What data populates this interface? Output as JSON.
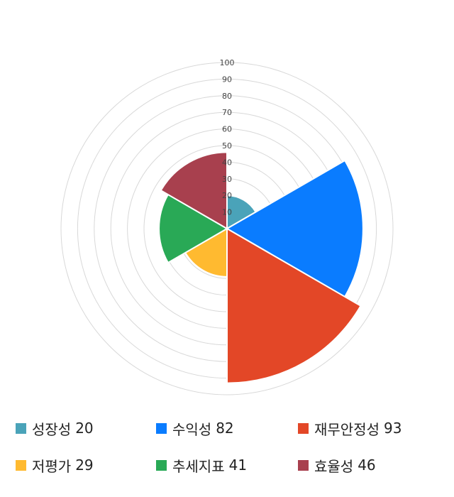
{
  "chart_data": {
    "type": "polar-area",
    "title": "",
    "rlim": [
      0,
      100
    ],
    "r_ticks": [
      "10",
      "20",
      "30",
      "40",
      "50",
      "60",
      "70",
      "80",
      "90",
      "100"
    ],
    "grid": true,
    "legend_position": "bottom",
    "categories": [
      "성장성",
      "수익성",
      "재무안정성",
      "저평가",
      "추세지표",
      "효율성"
    ],
    "values": [
      20,
      82,
      93,
      29,
      41,
      46
    ],
    "colors": [
      "#4aa3b9",
      "#0a7cff",
      "#e34727",
      "#ffba30",
      "#29a956",
      "#a8404e"
    ]
  },
  "legend": [
    {
      "label": "성장성",
      "value": "20",
      "color": "#4aa3b9"
    },
    {
      "label": "수익성",
      "value": "82",
      "color": "#0a7cff"
    },
    {
      "label": "재무안정성",
      "value": "93",
      "color": "#e34727"
    },
    {
      "label": "저평가",
      "value": "29",
      "color": "#ffba30"
    },
    {
      "label": "추세지표",
      "value": "41",
      "color": "#29a956"
    },
    {
      "label": "효율성",
      "value": "46",
      "color": "#a8404e"
    }
  ]
}
